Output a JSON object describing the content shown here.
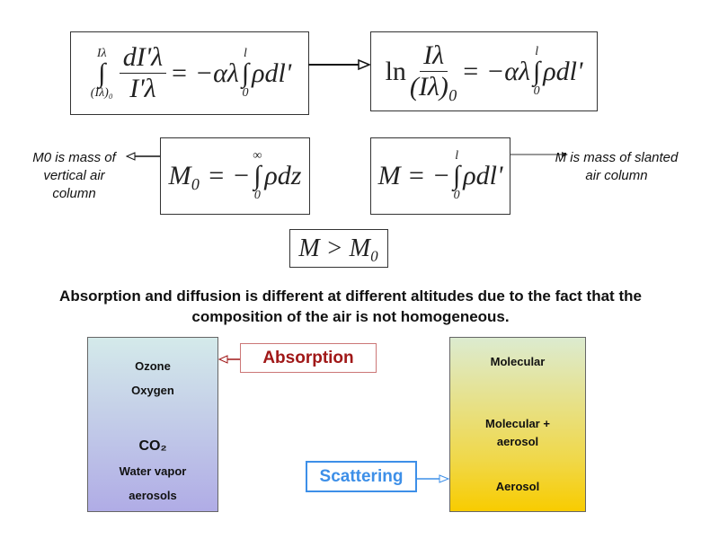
{
  "equations": {
    "eq1": {
      "upper": "Iλ",
      "lower": "(Iλ)₀",
      "numerator": "dI'λ",
      "denominator": "I'λ",
      "rhs": "= −αλ",
      "int_upper": "l",
      "int_lower": "0",
      "integrand": "ρdl'"
    },
    "eq2": {
      "ln": "ln",
      "numerator": "Iλ",
      "denominator": "(Iλ)₀",
      "rhs": "= −αλ",
      "int_upper": "l",
      "int_lower": "0",
      "integrand": "ρdl'"
    },
    "eq3": {
      "lhs": "M₀ = −",
      "int_upper": "∞",
      "int_lower": "0",
      "integrand": "ρdz"
    },
    "eq4": {
      "lhs": "M = −",
      "int_upper": "l",
      "int_lower": "0",
      "integrand": "ρdl'"
    },
    "eq5": {
      "text": "M > M₀"
    }
  },
  "labels": {
    "m0": "M0 is mass of vertical air column",
    "m": "M is mass of slanted air column"
  },
  "paragraph": "Absorption and diffusion is different at different altitudes due to the fact that the composition of the air is not homogeneous.",
  "absorption": {
    "label": "Absorption",
    "color": "#a01818",
    "items": [
      "Ozone",
      "Oxygen",
      "CO₂",
      "Water vapor",
      "aerosols"
    ]
  },
  "scattering": {
    "label": "Scattering",
    "color": "#3d8fe8",
    "items": [
      "Molecular",
      "Molecular + aerosol",
      "Aerosol"
    ]
  }
}
